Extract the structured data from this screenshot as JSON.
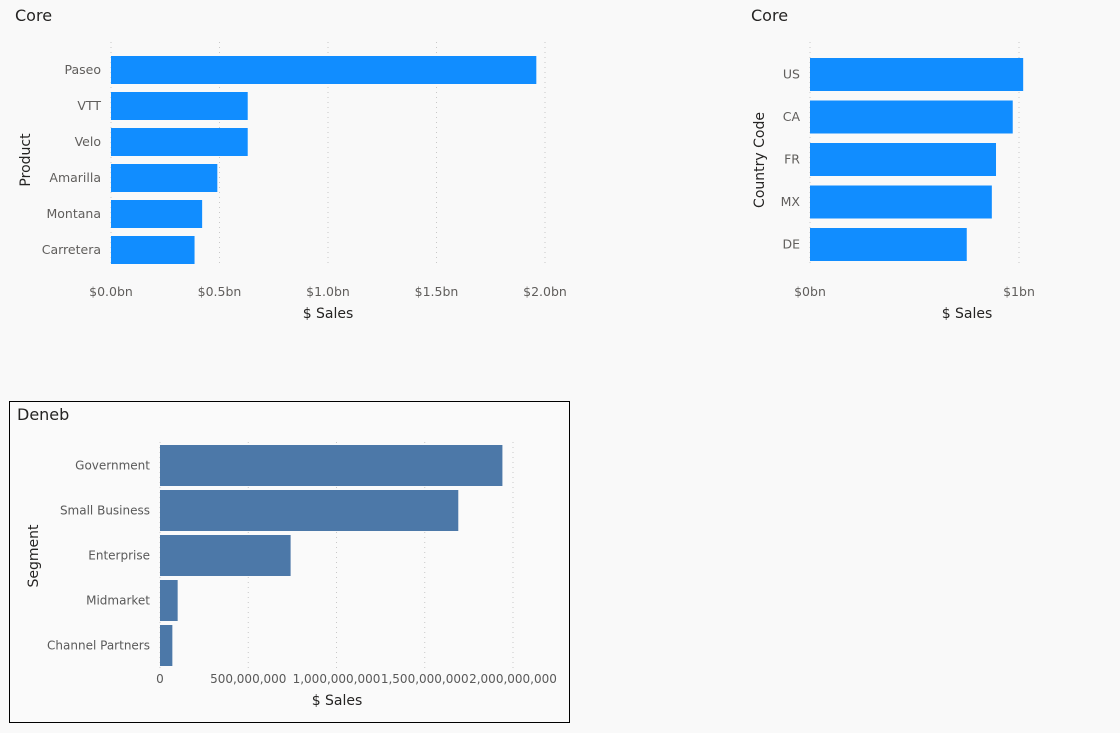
{
  "charts": {
    "product": {
      "title": "Core"
    },
    "country": {
      "title": "Core"
    },
    "segment": {
      "title": "Deneb"
    }
  },
  "chart_data": [
    {
      "type": "bar",
      "orientation": "horizontal",
      "title": "Core",
      "xlabel": "$ Sales",
      "ylabel": "Product",
      "categories": [
        "Paseo",
        "VTT",
        "Velo",
        "Amarilla",
        "Montana",
        "Carretera"
      ],
      "values": [
        1960000000,
        630000000,
        630000000,
        490000000,
        420000000,
        385000000
      ],
      "xlim": [
        0,
        2000000000
      ],
      "xticks": [
        0,
        500000000,
        1000000000,
        1500000000,
        2000000000
      ],
      "xtick_labels": [
        "$0.0bn",
        "$0.5bn",
        "$1.0bn",
        "$1.5bn",
        "$2.0bn"
      ],
      "bar_color": "#118dff",
      "grid": "vertical dotted"
    },
    {
      "type": "bar",
      "orientation": "horizontal",
      "title": "Core",
      "xlabel": "$ Sales",
      "ylabel": "Country Code",
      "categories": [
        "US",
        "CA",
        "FR",
        "MX",
        "DE"
      ],
      "values": [
        1020000000,
        970000000,
        890000000,
        870000000,
        750000000
      ],
      "xlim": [
        0,
        1000000000
      ],
      "xticks": [
        0,
        1000000000
      ],
      "xtick_labels": [
        "$0bn",
        "$1bn"
      ],
      "bar_color": "#118dff",
      "grid": "vertical dotted"
    },
    {
      "type": "bar",
      "orientation": "horizontal",
      "title": "Deneb",
      "xlabel": "$ Sales",
      "ylabel": "Segment",
      "categories": [
        "Government",
        "Small Business",
        "Enterprise",
        "Midmarket",
        "Channel Partners"
      ],
      "values": [
        1940000000,
        1690000000,
        740000000,
        100000000,
        70000000
      ],
      "xlim": [
        0,
        2000000000
      ],
      "xticks": [
        0,
        500000000,
        1000000000,
        1500000000,
        2000000000
      ],
      "xtick_labels": [
        "0",
        "500,000,000",
        "1,000,000,000",
        "1,500,000,000",
        "2,000,000,000"
      ],
      "bar_color": "#4c78a8",
      "grid": "vertical dotted"
    }
  ]
}
